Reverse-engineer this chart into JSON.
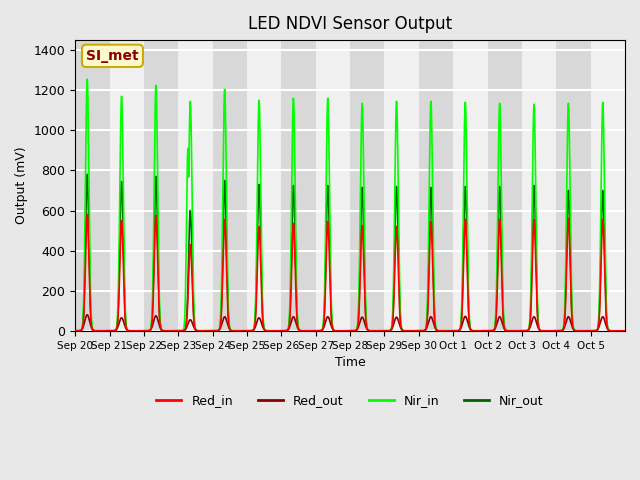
{
  "title": "LED NDVI Sensor Output",
  "xlabel": "Time",
  "ylabel": "Output (mV)",
  "ylim": [
    0,
    1450
  ],
  "yticks": [
    0,
    200,
    400,
    600,
    800,
    1000,
    1200,
    1400
  ],
  "x_labels": [
    "Sep 20",
    "Sep 21",
    "Sep 22",
    "Sep 23",
    "Sep 24",
    "Sep 25",
    "Sep 26",
    "Sep 27",
    "Sep 28",
    "Sep 29",
    "Sep 30",
    "Oct 1",
    "Oct 2",
    "Oct 3",
    "Oct 4",
    "Oct 5"
  ],
  "annotation_text": "SI_met",
  "annotation_color": "#8B0000",
  "annotation_bg": "#FFFACD",
  "annotation_border": "#CCAA00",
  "background_color": "#E8E8E8",
  "plot_bg": "#F0F0F0",
  "grid_color": "white",
  "series": {
    "Red_in": {
      "color": "#FF0000",
      "lw": 1.2
    },
    "Red_out": {
      "color": "#8B0000",
      "lw": 1.2
    },
    "Nir_in": {
      "color": "#00FF00",
      "lw": 1.2
    },
    "Nir_out": {
      "color": "#006400",
      "lw": 1.2
    }
  },
  "num_cycles": 16,
  "cycle_base_values": {
    "red_in_peaks": [
      580,
      550,
      575,
      430,
      555,
      520,
      535,
      545,
      525,
      520,
      545,
      555,
      555,
      555,
      560,
      555
    ],
    "red_out_peaks": [
      80,
      65,
      75,
      55,
      70,
      65,
      70,
      70,
      68,
      68,
      70,
      72,
      70,
      70,
      70,
      70
    ],
    "nir_in_peaks": [
      1255,
      1170,
      1225,
      1145,
      1205,
      1150,
      1160,
      1160,
      1135,
      1145,
      1145,
      1140,
      1135,
      1130,
      1135,
      1140
    ],
    "nir_out_peaks": [
      780,
      745,
      770,
      600,
      750,
      730,
      725,
      725,
      715,
      720,
      715,
      720,
      720,
      725,
      700,
      700
    ]
  },
  "special_nir_in_anomaly_idx": 3,
  "special_nir_in_anomaly_val": 910
}
